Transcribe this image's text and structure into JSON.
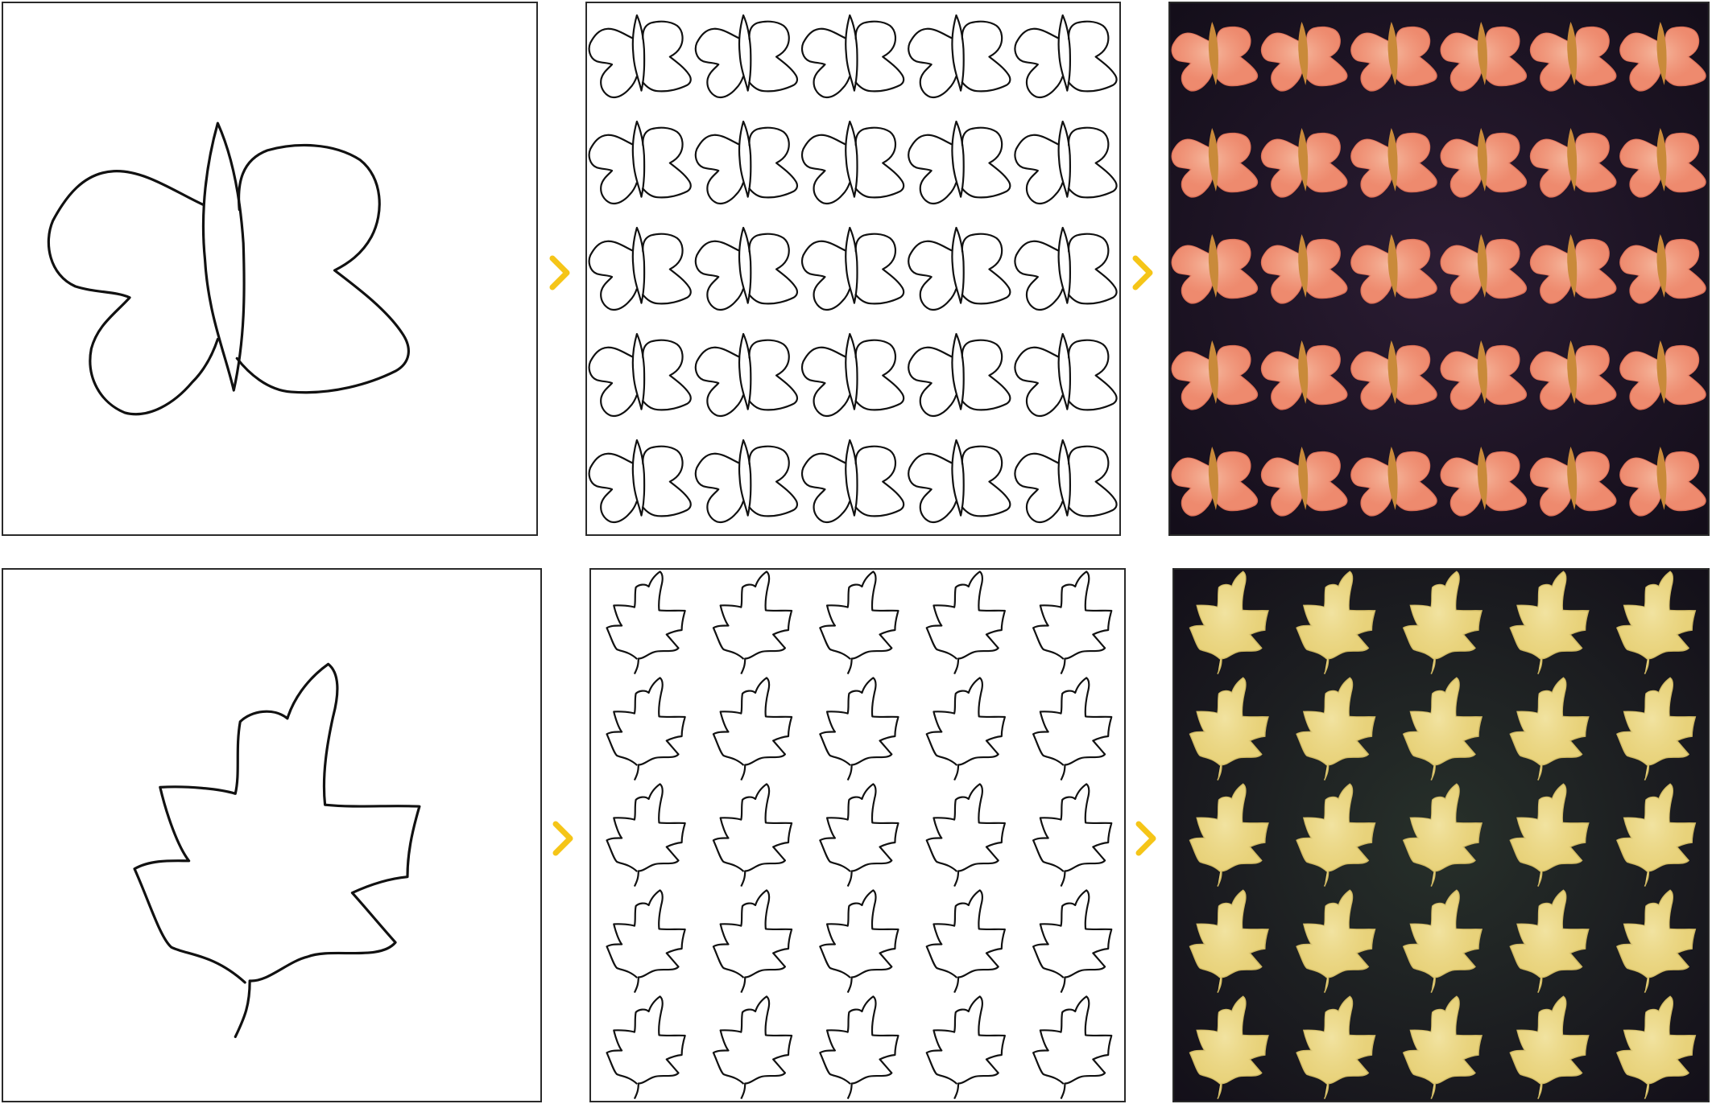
{
  "colors": {
    "accent_arrow": "#f5c518",
    "stroke": "#111111",
    "butterfly_fill": "#ee8a6e",
    "butterfly_fill_light": "#f7c2a8",
    "butterfly_background": "#2b1c33",
    "leaf_fill": "#e8d27a",
    "leaf_fill_light": "#f3e6a8",
    "leaf_background": "#27302a"
  },
  "grid": {
    "rows": 5,
    "cols": 5,
    "butterfly_cols_textured": 6
  },
  "icons": {
    "step_arrow": "chevron-right-icon"
  },
  "rows": [
    {
      "subject": "butterfly",
      "stages": [
        "sketch",
        "tiled-sketch",
        "textured-pattern"
      ]
    },
    {
      "subject": "leaf",
      "stages": [
        "sketch",
        "tiled-sketch",
        "textured-pattern"
      ]
    }
  ]
}
